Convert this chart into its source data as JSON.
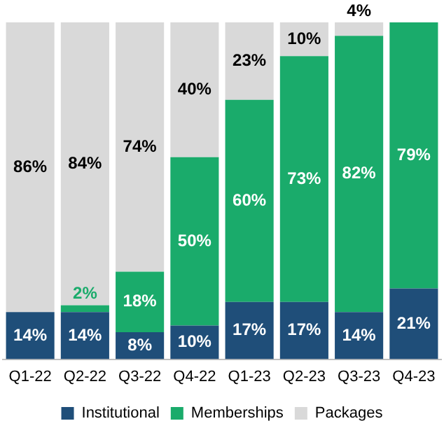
{
  "chart_data": {
    "type": "bar",
    "stacked": true,
    "categories": [
      "Q1-22",
      "Q2-22",
      "Q3-22",
      "Q4-22",
      "Q1-23",
      "Q2-23",
      "Q3-23",
      "Q4-23"
    ],
    "series": [
      {
        "name": "Institutional",
        "color": "#1f4e79",
        "values": [
          14,
          14,
          8,
          10,
          17,
          17,
          14,
          21
        ],
        "value_labels": [
          "14%",
          "14%",
          "8%",
          "10%",
          "17%",
          "17%",
          "14%",
          "21%"
        ]
      },
      {
        "name": "Memberships",
        "color": "#1aab6b",
        "values": [
          0,
          2,
          18,
          50,
          60,
          73,
          82,
          79
        ],
        "value_labels": [
          null,
          "2%",
          "18%",
          "50%",
          "60%",
          "73%",
          "82%",
          "79%"
        ]
      },
      {
        "name": "Packages",
        "color": "#d9d9d9",
        "values": [
          86,
          84,
          74,
          40,
          23,
          10,
          4,
          0
        ],
        "value_labels": [
          "86%",
          "84%",
          "74%",
          "40%",
          "23%",
          "10%",
          "4%",
          null
        ]
      }
    ],
    "legend": "bottom",
    "grid": false,
    "tick_labels": "x"
  }
}
